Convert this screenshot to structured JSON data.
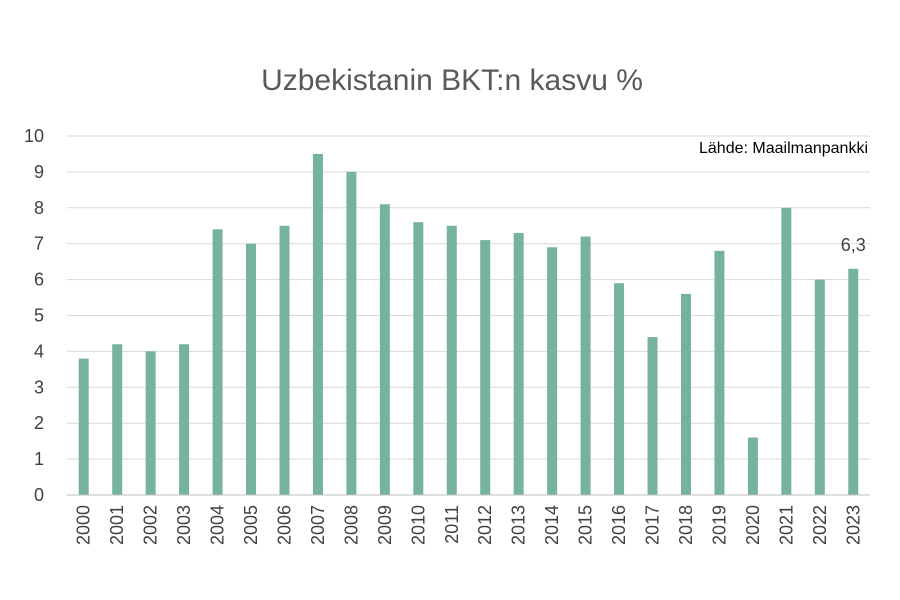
{
  "chart_data": {
    "type": "bar",
    "title": "Uzbekistanin BKT:n kasvu %",
    "annotation": "Lähde: Maailmanpankki",
    "categories": [
      "2000",
      "2001",
      "2002",
      "2003",
      "2004",
      "2005",
      "2006",
      "2007",
      "2008",
      "2009",
      "2010",
      "2011",
      "2012",
      "2013",
      "2014",
      "2015",
      "2016",
      "2017",
      "2018",
      "2019",
      "2020",
      "2021",
      "2022",
      "2023"
    ],
    "values": [
      3.8,
      4.2,
      4.0,
      4.2,
      7.4,
      7.0,
      7.5,
      9.5,
      9.0,
      8.1,
      7.6,
      7.5,
      7.1,
      7.3,
      6.9,
      7.2,
      5.9,
      4.4,
      5.6,
      6.8,
      1.6,
      8.0,
      6.0,
      6.3
    ],
    "data_labels": [
      {
        "category": "2023",
        "text": "6,3"
      }
    ],
    "y_ticks": [
      "0",
      "1",
      "2",
      "3",
      "4",
      "5",
      "6",
      "7",
      "8",
      "9",
      "10"
    ],
    "ylim": [
      0,
      10
    ],
    "grid": true,
    "bar_color": "#76b39d",
    "xlabel": "",
    "ylabel": ""
  }
}
